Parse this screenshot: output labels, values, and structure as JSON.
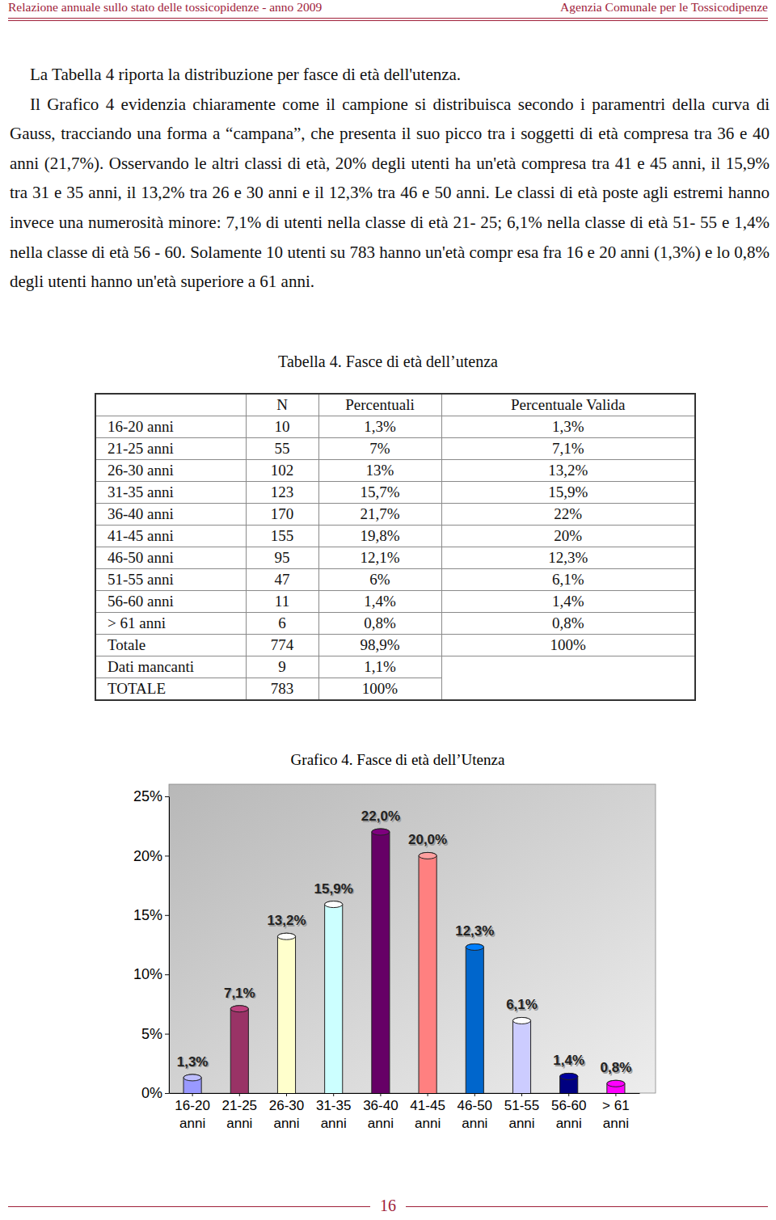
{
  "header": {
    "left": "Relazione annuale sullo stato delle tossicopidenze - anno 2009",
    "right": "Agenzia Comunale per le Tossicodipenze"
  },
  "paragraphs": [
    "La Tabella 4 riporta la distribuzione per fasce di età dell'utenza.",
    "Il Grafico 4 evidenzia chiaramente come il campione si distribuisca secondo i paramentri della curva di Gauss, tracciando una forma a “campana”, che presenta il suo picco tra i soggetti di età compresa tra 36 e 40 anni (21,7%). Osservando le altri classi di età, 20% degli utenti ha un'età compresa tra  41 e 45 anni, il 15,9% tra 31 e 35 anni, il 13,2% tra 26 e 30 anni e il 12,3% tra 46 e 50 anni. Le classi di età poste agli estremi hanno invece una numerosità minore: 7,1% di utenti nella classe di età 21- 25; 6,1% nella classe di età 51- 55 e 1,4% nella classe di età 56 - 60. Solamente 10 utenti su 783 hanno un'età compr esa fra 16 e 20 anni (1,3%) e lo 0,8% degli utenti hanno un'età superiore a 61 anni."
  ],
  "table": {
    "caption": "Tabella 4. Fasce di età dell’utenza",
    "header": [
      "N",
      "Percentuali",
      "Percentuale Valida"
    ],
    "rows": [
      [
        "16-20 anni",
        10,
        "1,3%",
        "1,3%"
      ],
      [
        "21-25 anni",
        55,
        "7%",
        "7,1%"
      ],
      [
        "26-30 anni",
        102,
        "13%",
        "13,2%"
      ],
      [
        "31-35 anni",
        123,
        "15,7%",
        "15,9%"
      ],
      [
        "36-40 anni",
        170,
        "21,7%",
        "22%"
      ],
      [
        "41-45 anni",
        155,
        "19,8%",
        "20%"
      ],
      [
        "46-50 anni",
        95,
        "12,1%",
        "12,3%"
      ],
      [
        "51-55 anni",
        47,
        "6%",
        "6,1%"
      ],
      [
        "56-60 anni",
        11,
        "1,4%",
        "1,4%"
      ],
      [
        "> 61 anni",
        6,
        "0,8%",
        "0,8%"
      ],
      [
        "Totale",
        774,
        "98,9%",
        "100%"
      ],
      [
        "Dati mancanti",
        9,
        "1,1%"
      ],
      [
        "TOTALE",
        783,
        "100%"
      ]
    ]
  },
  "chart_data": {
    "type": "bar",
    "title": "Grafico 4. Fasce di età dell’Utenza",
    "categories": [
      "16-20 anni",
      "21-25 anni",
      "26-30 anni",
      "31-35 anni",
      "36-40 anni",
      "41-45 anni",
      "46-50 anni",
      "51-55 anni",
      "56-60 anni",
      "> 61 anni"
    ],
    "values": [
      1.3,
      7.1,
      13.2,
      15.9,
      22.0,
      20.0,
      12.3,
      6.1,
      1.4,
      0.8
    ],
    "value_labels": [
      "1,3%",
      "7,1%",
      "13,2%",
      "15,9%",
      "22,0%",
      "20,0%",
      "12,3%",
      "6,1%",
      "1,4%",
      "0,8%"
    ],
    "colors": [
      "#9999ff",
      "#993366",
      "#ffffcc",
      "#ccffff",
      "#660066",
      "#ff8080",
      "#0066cc",
      "#ccccff",
      "#000080",
      "#ff00ff"
    ],
    "ylim": [
      0,
      25
    ],
    "yticks": [
      {
        "value": 0,
        "label": "0%"
      },
      {
        "value": 5,
        "label": "5%"
      },
      {
        "value": 10,
        "label": "10%"
      },
      {
        "value": 15,
        "label": "15%"
      },
      {
        "value": 20,
        "label": "20%"
      },
      {
        "value": 25,
        "label": "25%"
      }
    ],
    "grid": false,
    "data_labels": true
  },
  "footer": {
    "page_number": 16
  }
}
